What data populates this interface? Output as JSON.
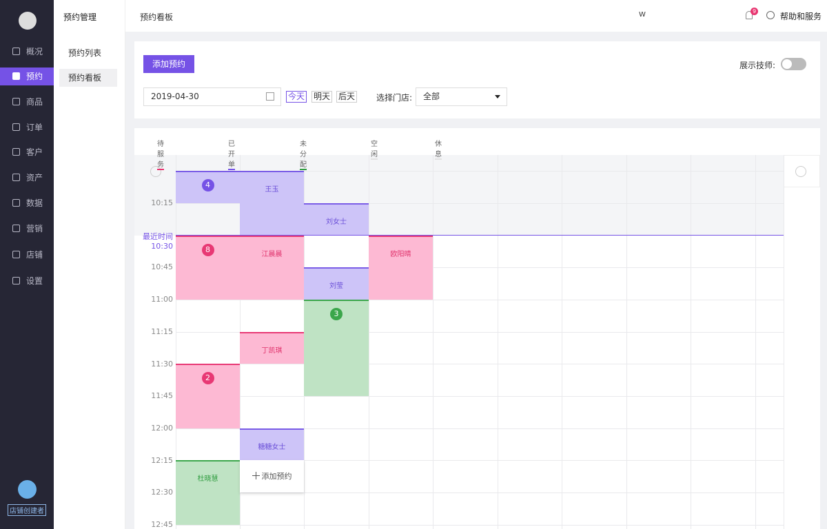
{
  "sidebar": {
    "menu": [
      "概况",
      "预约",
      "商品",
      "订单",
      "客户",
      "资产",
      "数据",
      "营销",
      "店铺",
      "设置"
    ],
    "user_role": "店铺创建者"
  },
  "submenu": {
    "title": "预约管理",
    "items": [
      "预约列表",
      "预约看板"
    ]
  },
  "topbar": {
    "title": "预约看板",
    "user": "W",
    "notification_count": "9",
    "help": "帮助和服务"
  },
  "toolbar": {
    "add_button": "添加预约",
    "show_technician": "展示技师:",
    "date": "2019-04-30",
    "day_buttons": [
      "今天",
      "明天",
      "后天"
    ],
    "store_label": "选择门店:",
    "store_value": "全部"
  },
  "legend": [
    "待服务",
    "已开单",
    "未分配",
    "空闲",
    "休息"
  ],
  "board": {
    "now_label": "最近时间",
    "time_labels": [
      "10:15",
      "10:30",
      "10:45",
      "11:00",
      "11:15",
      "11:30",
      "11:45",
      "12:00",
      "12:15",
      "12:30",
      "12:45"
    ],
    "appointments": [
      "4",
      "王玉",
      "刘女士",
      "8",
      "江晨晨",
      "欧阳晴",
      "刘莹",
      "3",
      "丁凯琪",
      "2",
      "糖糖女士",
      "杜晓慧"
    ],
    "add_appointment": "添加预约"
  }
}
